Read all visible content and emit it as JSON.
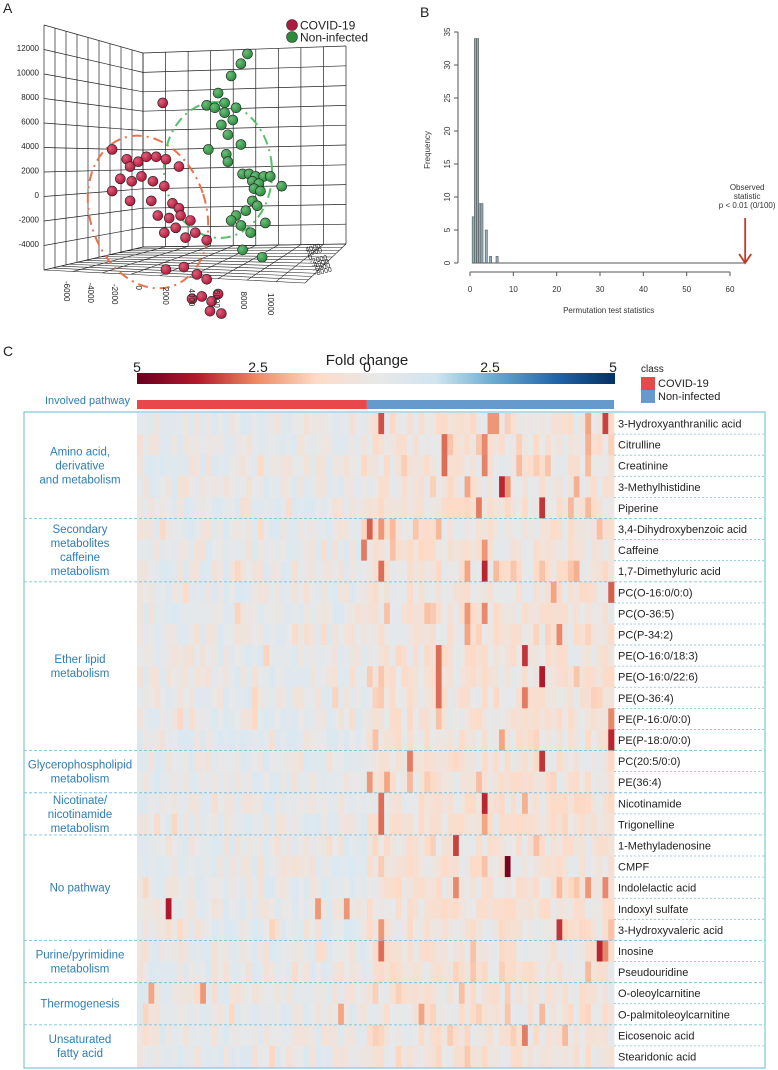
{
  "panels": {
    "a": "A",
    "b": "B",
    "c": "C"
  },
  "chart_data": [
    {
      "type": "scatter",
      "title": "",
      "projection": "3d",
      "legend": [
        {
          "name": "COVID-19",
          "color": "#b01a3c"
        },
        {
          "name": "Non-infected",
          "color": "#2e8b3e"
        }
      ],
      "legend_position": "top-right",
      "y_ticks": [
        "12000",
        "10000",
        "8000",
        "6000",
        "4000",
        "2000",
        "0",
        "-2000",
        "-4000"
      ],
      "x_ticks": [
        "-6000",
        "-4000",
        "-2000",
        "0",
        "2000",
        "4000",
        "6000",
        "8000",
        "10000"
      ],
      "z_ticks": [
        "4000",
        "2000",
        "0",
        "-2000",
        "-4000",
        "-6000",
        "-8000"
      ],
      "series": [
        {
          "name": "COVID-19",
          "ellipse_color": "#e8734a",
          "points": [
            [
              -300,
              3800
            ],
            [
              -3400,
              1900
            ],
            [
              -2500,
              1500
            ],
            [
              -2300,
              1200
            ],
            [
              -1800,
              1400
            ],
            [
              -1300,
              1600
            ],
            [
              -700,
              1600
            ],
            [
              -100,
              1500
            ],
            [
              -2900,
              700
            ],
            [
              -2200,
              600
            ],
            [
              -1600,
              800
            ],
            [
              -900,
              600
            ],
            [
              -200,
              400
            ],
            [
              700,
              1200
            ],
            [
              -3400,
              200
            ],
            [
              -2300,
              -200
            ],
            [
              -1000,
              -200
            ],
            [
              300,
              -300
            ],
            [
              700,
              -500
            ],
            [
              -600,
              -800
            ],
            [
              100,
              -900
            ],
            [
              800,
              -800
            ],
            [
              1400,
              -1000
            ],
            [
              -200,
              -1500
            ],
            [
              500,
              -1300
            ],
            [
              1100,
              -1700
            ],
            [
              1700,
              -1500
            ],
            [
              2400,
              -1800
            ],
            [
              -100,
              -3000
            ],
            [
              1000,
              -2900
            ],
            [
              1800,
              -3200
            ],
            [
              2400,
              -3400
            ],
            [
              1500,
              -4200
            ],
            [
              2100,
              -4100
            ],
            [
              2700,
              -4300
            ],
            [
              3100,
              -4000
            ],
            [
              2600,
              -4700
            ],
            [
              3300,
              -4800
            ]
          ]
        },
        {
          "name": "Non-infected",
          "ellipse_color": "#5cbf6a",
          "points": [
            [
              4900,
              5800
            ],
            [
              4500,
              5400
            ],
            [
              3900,
              4900
            ],
            [
              3100,
              4200
            ],
            [
              3500,
              3800
            ],
            [
              4200,
              3600
            ],
            [
              2400,
              3700
            ],
            [
              2900,
              3600
            ],
            [
              3500,
              3400
            ],
            [
              4000,
              3100
            ],
            [
              3300,
              2900
            ],
            [
              3700,
              2500
            ],
            [
              4500,
              2100
            ],
            [
              2500,
              1900
            ],
            [
              3600,
              1700
            ],
            [
              3700,
              1400
            ],
            [
              4600,
              900
            ],
            [
              5000,
              900
            ],
            [
              5400,
              800
            ],
            [
              5900,
              800
            ],
            [
              6300,
              800
            ],
            [
              5200,
              600
            ],
            [
              5600,
              500
            ],
            [
              7000,
              400
            ],
            [
              5300,
              300
            ],
            [
              5700,
              200
            ],
            [
              5200,
              -200
            ],
            [
              5500,
              -400
            ],
            [
              4800,
              -600
            ],
            [
              4200,
              -800
            ],
            [
              3900,
              -1000
            ],
            [
              4500,
              -1200
            ],
            [
              6000,
              -1100
            ],
            [
              5100,
              -1500
            ],
            [
              4600,
              -2200
            ],
            [
              5800,
              -2500
            ]
          ]
        }
      ]
    },
    {
      "type": "bar",
      "subtype": "histogram",
      "title": "",
      "xlabel": "Permutation test statistics",
      "ylabel": "Frequency",
      "xlim": [
        0,
        63
      ],
      "ylim": [
        0,
        35
      ],
      "x_ticks": [
        0,
        10,
        20,
        30,
        40,
        50,
        60
      ],
      "y_ticks": [
        0,
        5,
        10,
        15,
        20,
        25,
        30,
        35
      ],
      "bins": [
        {
          "x0": 0.5,
          "x1": 1.0,
          "count": 7
        },
        {
          "x0": 1.0,
          "x1": 1.5,
          "count": 34
        },
        {
          "x0": 1.5,
          "x1": 2.0,
          "count": 34
        },
        {
          "x0": 2.0,
          "x1": 2.5,
          "count": 9
        },
        {
          "x0": 2.5,
          "x1": 3.0,
          "count": 9
        },
        {
          "x0": 3.5,
          "x1": 4.0,
          "count": 5
        },
        {
          "x0": 4.5,
          "x1": 5.0,
          "count": 1
        },
        {
          "x0": 6.0,
          "x1": 6.5,
          "count": 1
        }
      ],
      "bar_color": "#8fb0bb",
      "annotation": {
        "x": 63.5,
        "lines": [
          "Observed",
          "statistic",
          "p < 0.01 (0/100)"
        ],
        "arrow_color": "#c0392b"
      }
    },
    {
      "type": "heatmap",
      "title": "Fold change",
      "colorbar_ticks": [
        "5",
        "2.5",
        "0",
        "2.5",
        "5"
      ],
      "colorbar_colors": [
        "#67001f",
        "#b2182b",
        "#ef8a62",
        "#fddbc7",
        "#e8e8e8",
        "#d1e5f0",
        "#67a9cf",
        "#2166ac",
        "#053061"
      ],
      "class_legend_title": "class",
      "classes": [
        {
          "name": "COVID-19",
          "color": "#e8474c",
          "columns": 40
        },
        {
          "name": "Non-infected",
          "color": "#6699cc",
          "columns": 43
        }
      ],
      "pathway_header": "Involved pathway",
      "groups": [
        {
          "name": [
            "Amino acid,",
            "derivative",
            "and metabolism"
          ],
          "rows": [
            "3-Hydroxyanthranilic acid",
            "Citrulline",
            "Creatinine",
            "3-Methylhistidine",
            "Piperine"
          ]
        },
        {
          "name": [
            "Secondary",
            "metabolites",
            "caffeine",
            "metabolism"
          ],
          "rows": [
            "3,4-Dihydroxybenzoic acid",
            "Caffeine",
            "1,7-Dimethyluric acid"
          ]
        },
        {
          "name": [
            "Ether lipid",
            "metabolism"
          ],
          "rows": [
            "PC(O-16:0/0:0)",
            "PC(O-36:5)",
            "PC(P-34:2)",
            "PE(O-16:0/18:3)",
            "PE(O-16:0/22:6)",
            "PE(O-36:4)",
            "PE(P-16:0/0:0)",
            "PE(P-18:0/0:0)"
          ]
        },
        {
          "name": [
            "Glycerophospholipid",
            "metabolism"
          ],
          "rows": [
            "PC(20:5/0:0)",
            "PE(36:4)"
          ]
        },
        {
          "name": [
            "Nicotinate/",
            "nicotinamide",
            "metabolism"
          ],
          "rows": [
            "Nicotinamide",
            "Trigonelline"
          ]
        },
        {
          "name": [
            "No pathway"
          ],
          "rows": [
            "1-Methyladenosine",
            "CMPF",
            "Indolelactic acid",
            "Indoxyl sulfate",
            "3-Hydroxyvaleric acid"
          ]
        },
        {
          "name": [
            "Purine/pyrimidine",
            "metabolism"
          ],
          "rows": [
            "Inosine",
            "Pseudouridine"
          ]
        },
        {
          "name": [
            "Thermogenesis"
          ],
          "rows": [
            "O-oleoylcarnitine",
            "O-palmitoleoylcarnitine"
          ]
        },
        {
          "name": [
            "Unsaturated",
            "fatty acid"
          ],
          "rows": [
            "Eicosenoic acid",
            "Stearidonic acid"
          ]
        }
      ],
      "strong_cells": [
        [
          0,
          42,
          -3.2
        ],
        [
          0,
          61,
          -2.2
        ],
        [
          0,
          62,
          -2.2
        ],
        [
          0,
          78,
          -2.0
        ],
        [
          0,
          81,
          -3.4
        ],
        [
          1,
          53,
          -2.8
        ],
        [
          1,
          60,
          -2.4
        ],
        [
          1,
          78,
          -1.8
        ],
        [
          2,
          53,
          -2.8
        ],
        [
          2,
          60,
          -2.5
        ],
        [
          2,
          66,
          -1.6
        ],
        [
          2,
          78,
          -1.6
        ],
        [
          3,
          57,
          -2.0
        ],
        [
          3,
          63,
          -3.8
        ],
        [
          3,
          64,
          -2.2
        ],
        [
          3,
          76,
          -1.8
        ],
        [
          4,
          59,
          -2.6
        ],
        [
          4,
          70,
          -3.6
        ],
        [
          5,
          40,
          -3.0
        ],
        [
          5,
          42,
          -2.2
        ],
        [
          5,
          44,
          -1.6
        ],
        [
          6,
          39,
          -2.6
        ],
        [
          6,
          60,
          -2.2
        ],
        [
          7,
          42,
          -2.8
        ],
        [
          7,
          57,
          -2.0
        ],
        [
          7,
          60,
          -3.8
        ],
        [
          7,
          76,
          -1.8
        ],
        [
          8,
          82,
          -3.0
        ],
        [
          8,
          72,
          -2.0
        ],
        [
          9,
          57,
          -2.2
        ],
        [
          9,
          60,
          -2.4
        ],
        [
          10,
          57,
          -2.0
        ],
        [
          10,
          73,
          -2.4
        ],
        [
          11,
          52,
          -2.8
        ],
        [
          11,
          67,
          -3.6
        ],
        [
          12,
          52,
          -2.8
        ],
        [
          12,
          70,
          -4.0
        ],
        [
          13,
          52,
          -2.8
        ],
        [
          13,
          67,
          -2.6
        ],
        [
          14,
          82,
          -2.4
        ],
        [
          15,
          82,
          -3.8
        ],
        [
          15,
          63,
          -2.0
        ],
        [
          16,
          47,
          -2.6
        ],
        [
          16,
          70,
          -3.6
        ],
        [
          17,
          40,
          -2.2
        ],
        [
          17,
          43,
          -2.0
        ],
        [
          18,
          42,
          -2.8
        ],
        [
          18,
          60,
          -3.8
        ],
        [
          18,
          67,
          -1.8
        ],
        [
          19,
          42,
          -2.8
        ],
        [
          19,
          60,
          -2.0
        ],
        [
          20,
          55,
          -3.4
        ],
        [
          21,
          64,
          -4.8
        ],
        [
          22,
          55,
          -2.4
        ],
        [
          22,
          78,
          -2.2
        ],
        [
          22,
          81,
          -2.4
        ],
        [
          23,
          5,
          -4.0
        ],
        [
          23,
          31,
          -2.2
        ],
        [
          23,
          36,
          -2.2
        ],
        [
          24,
          42,
          -2.2
        ],
        [
          24,
          73,
          -3.6
        ],
        [
          25,
          42,
          -2.8
        ],
        [
          25,
          80,
          -3.8
        ],
        [
          25,
          81,
          -2.4
        ],
        [
          27,
          2,
          -2.0
        ],
        [
          27,
          11,
          -2.2
        ],
        [
          28,
          35,
          -2.0
        ],
        [
          28,
          49,
          -2.0
        ],
        [
          29,
          67,
          -2.6
        ]
      ]
    }
  ]
}
